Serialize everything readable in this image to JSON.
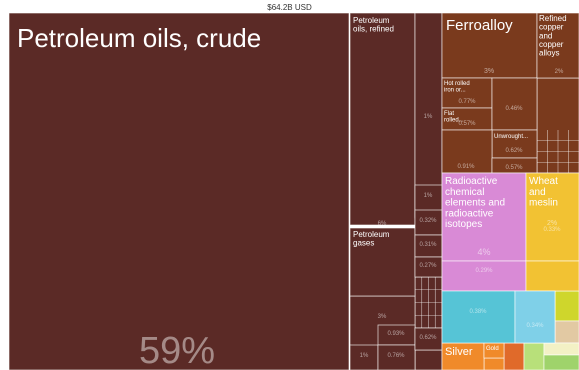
{
  "total_label": "$64.2B USD",
  "chart_data": {
    "type": "treemap",
    "title": "$64.2B USD",
    "total": "$64.2B USD",
    "colors": {
      "mineral_products": "#5b2a26",
      "metals": "#7a3a1d",
      "chemicals": "#d98ad6",
      "vegetable_products": "#f2c233",
      "plastics_rubbers": "#5ed6e3",
      "precious_metals": "#f08a2a",
      "machines": "#56c4d6",
      "transportation": "#7fd0e8",
      "instruments": "#b8e07a",
      "textiles": "#9fd36b",
      "foodstuffs": "#e06a2a",
      "misc": "#cfd62c",
      "stone_glass": "#e2c9a3",
      "paper": "#f3f1c5"
    },
    "items": [
      {
        "name": "Petroleum oils, crude",
        "share_label": "59%",
        "share": 59,
        "category": "mineral_products"
      },
      {
        "name": "Petroleum oils, refined",
        "share_label": "6%",
        "share": 6,
        "category": "mineral_products"
      },
      {
        "name": "",
        "share_label": "3%",
        "share": 3,
        "category": "mineral_products"
      },
      {
        "name": "",
        "share_label": "1%",
        "share": 1,
        "category": "mineral_products"
      },
      {
        "name": "Petroleum gases",
        "share_label": "",
        "share": 3,
        "category": "mineral_products"
      },
      {
        "name": "",
        "share_label": "1%",
        "share": 1,
        "category": "mineral_products"
      },
      {
        "name": "",
        "share_label": "1%",
        "share": 1,
        "category": "mineral_products"
      },
      {
        "name": "",
        "share_label": "0.93%",
        "share": 0.93,
        "category": "mineral_products"
      },
      {
        "name": "",
        "share_label": "0.76%",
        "share": 0.76,
        "category": "mineral_products"
      },
      {
        "name": "",
        "share_label": "0.32%",
        "share": 0.32,
        "category": "mineral_products"
      },
      {
        "name": "",
        "share_label": "0.31%",
        "share": 0.31,
        "category": "mineral_products"
      },
      {
        "name": "",
        "share_label": "0.27%",
        "share": 0.27,
        "category": "mineral_products"
      },
      {
        "name": "",
        "share_label": "0.62%",
        "share": 0.62,
        "category": "mineral_products"
      },
      {
        "name": "Ferroalloy",
        "share_label": "3%",
        "share": 3,
        "category": "metals"
      },
      {
        "name": "Refined copper and copper alloys",
        "share_label": "2%",
        "share": 2,
        "category": "metals"
      },
      {
        "name": "Hot rolled iron or...",
        "share_label": "0.77%",
        "share": 0.77,
        "category": "metals"
      },
      {
        "name": "Flat rolled...",
        "share_label": "0.57%",
        "share": 0.57,
        "category": "metals"
      },
      {
        "name": "",
        "share_label": "0.46%",
        "share": 0.46,
        "category": "metals"
      },
      {
        "name": "Unwrought...",
        "share_label": "0.62%",
        "share": 0.62,
        "category": "metals"
      },
      {
        "name": "",
        "share_label": "0.91%",
        "share": 0.91,
        "category": "metals"
      },
      {
        "name": "",
        "share_label": "0.57%",
        "share": 0.57,
        "category": "metals"
      },
      {
        "name": "Radioactive chemical elements and radioactive isotopes",
        "share_label": "4%",
        "share": 4,
        "category": "chemicals"
      },
      {
        "name": "",
        "share_label": "0.29%",
        "share": 0.29,
        "category": "chemicals"
      },
      {
        "name": "Wheat and meslin",
        "share_label": "2%",
        "share": 2,
        "category": "vegetable_products"
      },
      {
        "name": "",
        "share_label": "0.33%",
        "share": 0.33,
        "category": "vegetable_products"
      },
      {
        "name": "Silver",
        "share_label": "",
        "share": 0.6,
        "category": "precious_metals"
      },
      {
        "name": "Gold",
        "share_label": "",
        "share": 0.3,
        "category": "precious_metals"
      },
      {
        "name": "",
        "share_label": "0.38%",
        "share": 0.38,
        "category": "machines"
      },
      {
        "name": "",
        "share_label": "0.34%",
        "share": 0.34,
        "category": "transportation"
      }
    ]
  }
}
